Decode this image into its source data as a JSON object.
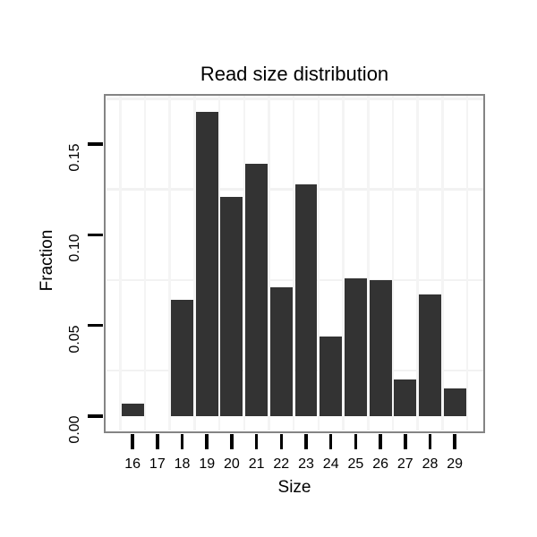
{
  "chart_data": {
    "type": "bar",
    "title": "Read size distribution",
    "xlabel": "Size",
    "ylabel": "Fraction",
    "categories": [
      "16",
      "17",
      "18",
      "19",
      "20",
      "21",
      "22",
      "23",
      "24",
      "25",
      "26",
      "27",
      "28",
      "29"
    ],
    "values": [
      0.007,
      0.0,
      0.064,
      0.168,
      0.121,
      0.139,
      0.071,
      0.128,
      0.044,
      0.076,
      0.075,
      0.02,
      0.067,
      0.015
    ],
    "yticks": {
      "values": [
        0.0,
        0.05,
        0.1,
        0.15
      ],
      "labels": [
        "0.00",
        "0.05",
        "0.10",
        "0.15"
      ]
    },
    "ylim": [
      -0.008,
      0.1767
    ],
    "xlim": [
      14.93,
      30.13
    ],
    "grid": {
      "y_minor": [
        0.025,
        0.075,
        0.125,
        0.175
      ],
      "vertical_at_category_boundaries": true
    },
    "legend_position": "none",
    "colors": {
      "bar": "#333333",
      "panel_border": "#848484",
      "grid_horizontal": "#f2f2f2",
      "grid_vertical": "#f4f4f4",
      "tick": "#000000",
      "text": "#000000",
      "background": "#ffffff"
    }
  }
}
